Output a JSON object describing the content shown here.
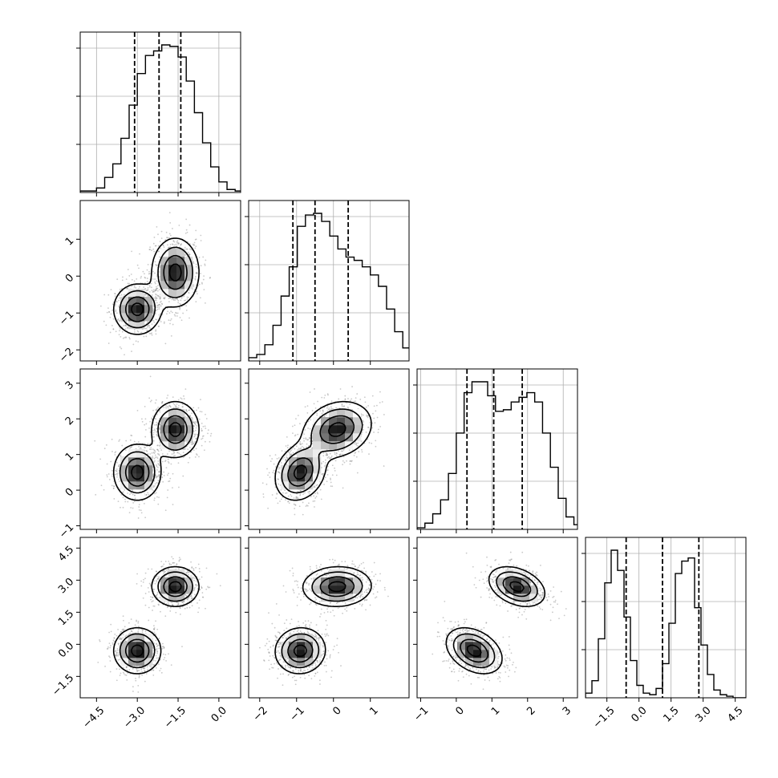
{
  "chart_data": {
    "type": "corner",
    "grid": true,
    "quantile_lines": "dashed",
    "params": [
      {
        "xlim": [
          -5.1,
          0.8
        ],
        "ticks": [
          -4.5,
          -3.0,
          -1.5,
          0.0
        ],
        "tick_labels": [
          "−4.5",
          "−3.0",
          "−1.5",
          "0.0"
        ],
        "quantiles": [
          -3.1,
          -2.2,
          -1.4
        ],
        "hist_bins_start": -5.1,
        "hist_bin_width": 0.3,
        "hist": [
          0.01,
          0.01,
          0.03,
          0.1,
          0.19,
          0.36,
          0.58,
          0.79,
          0.91,
          0.94,
          0.98,
          0.97,
          0.9,
          0.74,
          0.53,
          0.33,
          0.17,
          0.07,
          0.02,
          0.01
        ]
      },
      {
        "xlim": [
          -2.3,
          2.05
        ],
        "ticks": [
          -2,
          -1,
          0,
          1
        ],
        "tick_labels": [
          "−2",
          "−1",
          "0",
          "1"
        ],
        "quantiles": [
          -1.1,
          -0.5,
          0.4
        ],
        "hist_bins_start": -2.3,
        "hist_bin_width": 0.22,
        "hist": [
          0.02,
          0.04,
          0.1,
          0.22,
          0.4,
          0.58,
          0.83,
          0.9,
          0.91,
          0.86,
          0.77,
          0.69,
          0.64,
          0.62,
          0.58,
          0.53,
          0.46,
          0.32,
          0.18,
          0.08,
          0.04
        ]
      },
      {
        "xlim": [
          -1.1,
          3.4
        ],
        "ticks": [
          -1,
          0,
          1,
          2,
          3
        ],
        "tick_labels": [
          "−1",
          "0",
          "1",
          "2",
          "3"
        ],
        "quantiles": [
          0.3,
          1.05,
          1.85
        ],
        "hist_bins_start": -1.1,
        "hist_bin_width": 0.22,
        "hist": [
          0.01,
          0.04,
          0.1,
          0.19,
          0.36,
          0.62,
          0.88,
          0.95,
          0.95,
          0.86,
          0.76,
          0.77,
          0.82,
          0.85,
          0.88,
          0.82,
          0.62,
          0.4,
          0.2,
          0.08,
          0.03
        ]
      },
      {
        "xlim": [
          -2.5,
          5.0
        ],
        "ticks": [
          -1.5,
          0.0,
          1.5,
          3.0,
          4.5
        ],
        "tick_labels": [
          "−1.5",
          "0.0",
          "1.5",
          "3.0",
          "4.5"
        ],
        "quantiles": [
          -0.6,
          1.1,
          2.8
        ],
        "hist_bins_start": -2.5,
        "hist_bin_width": 0.3,
        "hist": [
          0.03,
          0.11,
          0.38,
          0.74,
          0.95,
          0.82,
          0.52,
          0.24,
          0.08,
          0.03,
          0.02,
          0.06,
          0.22,
          0.48,
          0.8,
          0.88,
          0.9,
          0.58,
          0.34,
          0.15,
          0.05,
          0.02,
          0.01,
          0.0,
          0.0
        ]
      }
    ],
    "modes": [
      {
        "center": [
          -3.0,
          -0.9,
          0.5,
          -0.3
        ],
        "sd": [
          0.42,
          0.33,
          0.38,
          0.52
        ],
        "weight": 0.5
      },
      {
        "center": [
          -1.6,
          0.1,
          1.7,
          2.7
        ],
        "sd": [
          0.42,
          0.45,
          0.38,
          0.45
        ],
        "weight": 0.5
      }
    ],
    "pair_corr": {
      "1-0": 0.0,
      "2-0": 0.0,
      "2-1": 0.2,
      "3-0": 0.0,
      "3-1": 0.1,
      "3-2": -0.35
    },
    "contour_levels": [
      0.5,
      1.0,
      1.5,
      2.0
    ]
  }
}
